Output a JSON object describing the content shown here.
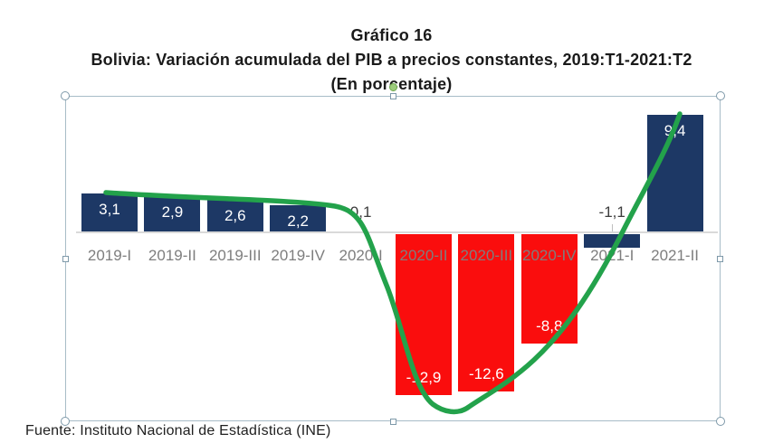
{
  "title": {
    "line1": "Gráfico 16",
    "line2": "Bolivia: Variación acumulada del PIB a precios constantes, 2019:T1-2021:T2",
    "line3": "(En porcentaje)"
  },
  "footer": {
    "source": "Fuente: Instituto Nacional de Estadística (INE)"
  },
  "colors": {
    "navy": "#1d3865",
    "red": "#fa0d0d",
    "curve_green": "#23a24b",
    "category_label": "#7e7e7e",
    "inside_label": "#ffffff",
    "outside_label": "#3d3d3d",
    "axis_line": "#d9d9d9",
    "selection_box": "#a8bcc7"
  },
  "chart_data": {
    "type": "bar",
    "title": "Gráfico 16 — Bolivia: Variación acumulada del PIB a precios constantes, 2019:T1-2021:T2 (En porcentaje)",
    "categories": [
      "2019-I",
      "2019-II",
      "2019-III",
      "2019-IV",
      "2020-I",
      "2020-II",
      "2020-III",
      "2020-IV",
      "2021-I",
      "2021-II"
    ],
    "series": [
      {
        "name": "Variación acumulada del PIB (%)",
        "values": [
          3.1,
          2.9,
          2.6,
          2.2,
          0.1,
          -12.9,
          -12.6,
          -8.8,
          -1.1,
          9.4
        ],
        "labels": [
          "3,1",
          "2,9",
          "2,6",
          "2,2",
          "0,1",
          "-12,9",
          "-12,6",
          "-8,8",
          "-1,1",
          "9,4"
        ]
      }
    ],
    "bar_colors": [
      "navy",
      "navy",
      "navy",
      "navy",
      "navy",
      "red",
      "red",
      "red",
      "navy",
      "navy"
    ],
    "overlay": "hand-drawn smooth green trend curve following the bar values",
    "xlabel": "",
    "ylabel": "",
    "ylim": [
      -14,
      10
    ],
    "grid": false,
    "legend_position": "none",
    "value_axis_visible": false
  }
}
